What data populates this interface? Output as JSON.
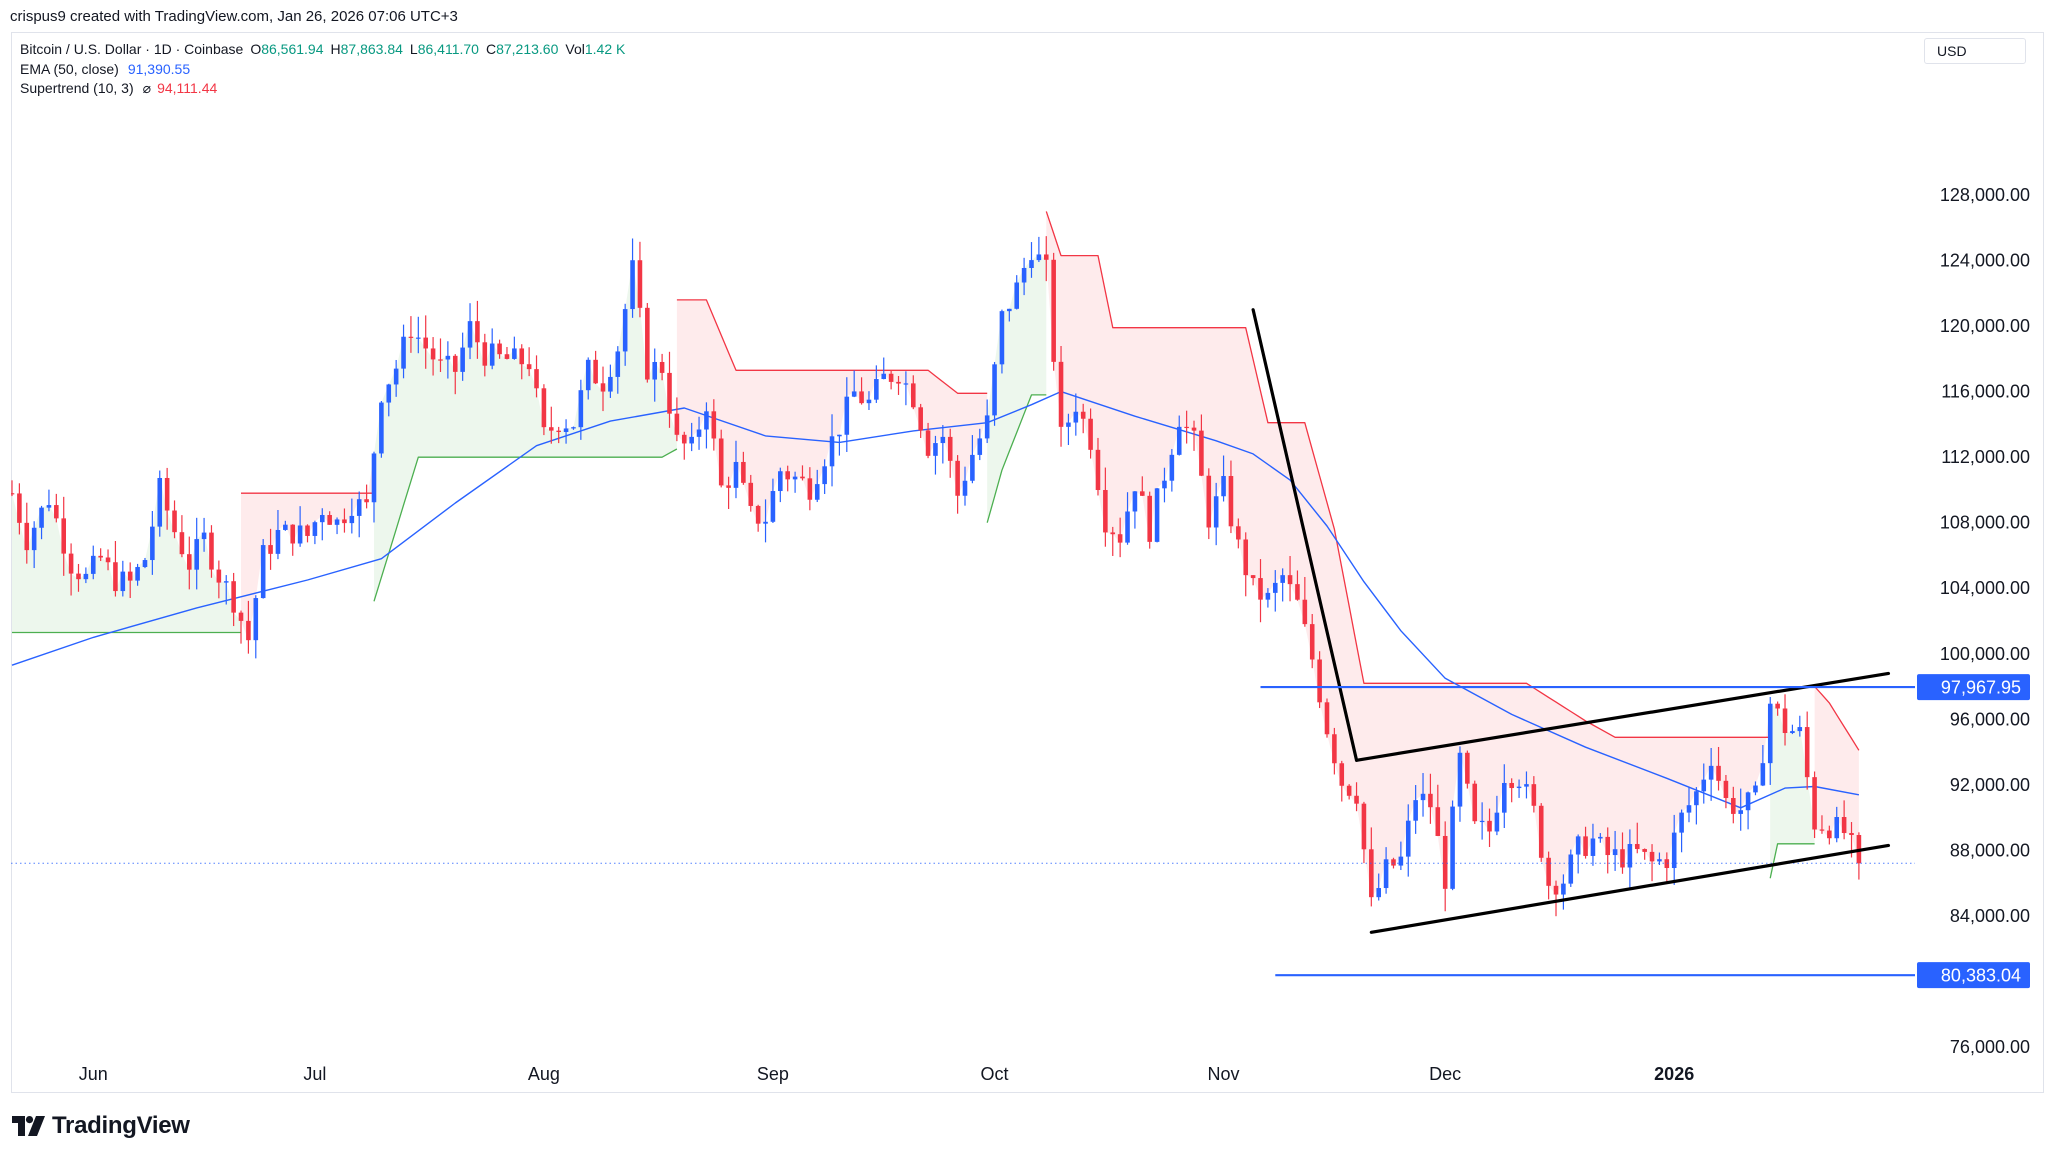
{
  "header": {
    "text": "crispus9 created with TradingView.com, Jan 26, 2026 07:06 UTC+3"
  },
  "legend": {
    "symbol": "Bitcoin / U.S. Dollar · 1D · Coinbase",
    "open_label": "O",
    "open": "86,561.94",
    "high_label": "H",
    "high": "87,863.84",
    "low_label": "L",
    "low": "86,411.70",
    "close_label": "C",
    "close": "87,213.60",
    "vol_label": "Vol",
    "vol": "1.42 K",
    "ema_label": "EMA (50, close)",
    "ema_value": "91,390.55",
    "supertrend_label": "Supertrend (10, 3)",
    "supertrend_symbol": "⌀",
    "supertrend_value": "94,111.44"
  },
  "currency": "USD",
  "brand": {
    "name": "TradingView"
  },
  "colors": {
    "up": "#2962ff",
    "down": "#f23645",
    "ema": "#2962ff",
    "supertrend_up": "#4caf50",
    "supertrend_down": "#f23645",
    "hline": "#2962ff"
  },
  "chart_data": {
    "type": "candlestick",
    "symbol": "Bitcoin / U.S. Dollar",
    "interval": "1D",
    "exchange": "Coinbase",
    "y_axis_ticks": [
      "128,000.00",
      "124,000.00",
      "120,000.00",
      "116,000.00",
      "112,000.00",
      "108,000.00",
      "104,000.00",
      "100,000.00",
      "96,000.00",
      "92,000.00",
      "88,000.00",
      "84,000.00",
      "76,000.00"
    ],
    "ylim": [
      76000,
      130000
    ],
    "x_axis_labels": [
      "Jun",
      "Jul",
      "Aug",
      "Sep",
      "Oct",
      "Nov",
      "Dec",
      "2026"
    ],
    "price_labels": [
      {
        "value": 97967.95,
        "text": "97,967.95"
      },
      {
        "value": 80383.04,
        "text": "80,383.04"
      }
    ],
    "last_price": 87213.6,
    "annotations": [
      {
        "type": "trendline",
        "from": [
          "2025-11-05",
          121000
        ],
        "to": [
          "2025-11-19",
          93500
        ]
      },
      {
        "type": "trendline",
        "from": [
          "2025-11-19",
          93500
        ],
        "to": [
          "2026-01-30",
          98800
        ]
      },
      {
        "type": "trendline",
        "from": [
          "2025-11-21",
          83000
        ],
        "to": [
          "2026-01-30",
          88300
        ]
      },
      {
        "type": "hline",
        "value": 97967.95,
        "from": "2025-11-06"
      },
      {
        "type": "hline",
        "value": 80383.04,
        "from": "2025-11-08"
      }
    ],
    "series": [
      {
        "name": "Price",
        "close_path": [
          [
            "2025-05-21",
            109800
          ],
          [
            "2025-05-23",
            107000
          ],
          [
            "2025-05-26",
            109500
          ],
          [
            "2025-05-29",
            105500
          ],
          [
            "2025-05-31",
            104600
          ],
          [
            "2025-06-02",
            105800
          ],
          [
            "2025-06-04",
            104500
          ],
          [
            "2025-06-06",
            104300
          ],
          [
            "2025-06-08",
            105800
          ],
          [
            "2025-06-10",
            110000
          ],
          [
            "2025-06-12",
            107500
          ],
          [
            "2025-06-14",
            105500
          ],
          [
            "2025-06-16",
            107000
          ],
          [
            "2025-06-18",
            104800
          ],
          [
            "2025-06-20",
            103300
          ],
          [
            "2025-06-22",
            100900
          ],
          [
            "2025-06-24",
            106000
          ],
          [
            "2025-06-26",
            107300
          ],
          [
            "2025-06-28",
            107400
          ],
          [
            "2025-06-30",
            107200
          ],
          [
            "2025-07-02",
            108900
          ],
          [
            "2025-07-04",
            108000
          ],
          [
            "2025-07-06",
            109200
          ],
          [
            "2025-07-08",
            108900
          ],
          [
            "2025-07-10",
            116000
          ],
          [
            "2025-07-12",
            117500
          ],
          [
            "2025-07-14",
            119900
          ],
          [
            "2025-07-16",
            118700
          ],
          [
            "2025-07-18",
            117500
          ],
          [
            "2025-07-20",
            117300
          ],
          [
            "2025-07-22",
            119900
          ],
          [
            "2025-07-24",
            118300
          ],
          [
            "2025-07-26",
            118000
          ],
          [
            "2025-07-28",
            117900
          ],
          [
            "2025-07-30",
            117800
          ],
          [
            "2025-08-01",
            113300
          ],
          [
            "2025-08-03",
            114200
          ],
          [
            "2025-08-05",
            114100
          ],
          [
            "2025-08-07",
            117300
          ],
          [
            "2025-08-09",
            116600
          ],
          [
            "2025-08-11",
            118700
          ],
          [
            "2025-08-13",
            123400
          ],
          [
            "2025-08-15",
            117400
          ],
          [
            "2025-08-17",
            117500
          ],
          [
            "2025-08-19",
            112900
          ],
          [
            "2025-08-21",
            112500
          ],
          [
            "2025-08-23",
            115400
          ],
          [
            "2025-08-25",
            110100
          ],
          [
            "2025-08-27",
            111300
          ],
          [
            "2025-08-29",
            108400
          ],
          [
            "2025-08-31",
            108300
          ],
          [
            "2025-09-02",
            111200
          ],
          [
            "2025-09-04",
            110700
          ],
          [
            "2025-09-06",
            110200
          ],
          [
            "2025-09-08",
            112100
          ],
          [
            "2025-09-10",
            113900
          ],
          [
            "2025-09-12",
            115900
          ],
          [
            "2025-09-14",
            115300
          ],
          [
            "2025-09-16",
            116800
          ],
          [
            "2025-09-18",
            117200
          ],
          [
            "2025-09-20",
            115700
          ],
          [
            "2025-09-22",
            112700
          ],
          [
            "2025-09-24",
            113300
          ],
          [
            "2025-09-26",
            109700
          ],
          [
            "2025-09-28",
            112200
          ],
          [
            "2025-09-30",
            114100
          ],
          [
            "2025-10-02",
            120500
          ],
          [
            "2025-10-04",
            122300
          ],
          [
            "2025-10-06",
            124800
          ],
          [
            "2025-10-08",
            123300
          ],
          [
            "2025-10-10",
            113200
          ],
          [
            "2025-10-12",
            115300
          ],
          [
            "2025-10-14",
            113100
          ],
          [
            "2025-10-16",
            108200
          ],
          [
            "2025-10-18",
            107200
          ],
          [
            "2025-10-20",
            110500
          ],
          [
            "2025-10-22",
            107600
          ],
          [
            "2025-10-24",
            111000
          ],
          [
            "2025-10-26",
            114500
          ],
          [
            "2025-10-28",
            112900
          ],
          [
            "2025-10-30",
            108300
          ],
          [
            "2025-11-01",
            110100
          ],
          [
            "2025-11-03",
            106500
          ],
          [
            "2025-11-05",
            103900
          ],
          [
            "2025-11-07",
            103300
          ],
          [
            "2025-11-09",
            104700
          ],
          [
            "2025-11-11",
            103000
          ],
          [
            "2025-11-13",
            99700
          ],
          [
            "2025-11-15",
            95500
          ],
          [
            "2025-11-17",
            92200
          ],
          [
            "2025-11-19",
            91500
          ],
          [
            "2025-11-21",
            84600
          ],
          [
            "2025-11-23",
            86800
          ],
          [
            "2025-11-25",
            87400
          ],
          [
            "2025-11-27",
            91300
          ],
          [
            "2025-11-29",
            90800
          ],
          [
            "2025-12-01",
            86300
          ],
          [
            "2025-12-03",
            93500
          ],
          [
            "2025-12-05",
            89300
          ],
          [
            "2025-12-07",
            89200
          ],
          [
            "2025-12-09",
            92700
          ],
          [
            "2025-12-11",
            92500
          ],
          [
            "2025-12-13",
            90300
          ],
          [
            "2025-12-15",
            86000
          ],
          [
            "2025-12-17",
            86200
          ],
          [
            "2025-12-19",
            88100
          ],
          [
            "2025-12-21",
            88600
          ],
          [
            "2025-12-23",
            87700
          ],
          [
            "2025-12-25",
            87600
          ],
          [
            "2025-12-27",
            87800
          ],
          [
            "2025-12-29",
            87200
          ],
          [
            "2025-12-31",
            87500
          ],
          [
            "2026-01-02",
            90000
          ],
          [
            "2026-01-04",
            91500
          ],
          [
            "2026-01-06",
            93800
          ],
          [
            "2026-01-08",
            91000
          ],
          [
            "2026-01-10",
            90500
          ],
          [
            "2026-01-12",
            91200
          ],
          [
            "2026-01-14",
            97000
          ],
          [
            "2026-01-16",
            95500
          ],
          [
            "2026-01-18",
            95100
          ],
          [
            "2026-01-20",
            89700
          ],
          [
            "2026-01-22",
            89500
          ],
          [
            "2026-01-24",
            89100
          ],
          [
            "2026-01-26",
            87213.6
          ]
        ]
      },
      {
        "name": "EMA (50, close)",
        "points": [
          [
            "2025-05-21",
            99300
          ],
          [
            "2025-06-01",
            101000
          ],
          [
            "2025-06-15",
            102800
          ],
          [
            "2025-06-30",
            104500
          ],
          [
            "2025-07-10",
            105800
          ],
          [
            "2025-07-20",
            109200
          ],
          [
            "2025-07-31",
            112700
          ],
          [
            "2025-08-10",
            114200
          ],
          [
            "2025-08-20",
            115000
          ],
          [
            "2025-08-31",
            113300
          ],
          [
            "2025-09-10",
            112900
          ],
          [
            "2025-09-20",
            113600
          ],
          [
            "2025-09-30",
            114100
          ],
          [
            "2025-10-06",
            115200
          ],
          [
            "2025-10-10",
            116000
          ],
          [
            "2025-10-20",
            114500
          ],
          [
            "2025-10-31",
            113000
          ],
          [
            "2025-11-05",
            112200
          ],
          [
            "2025-11-10",
            110600
          ],
          [
            "2025-11-15",
            107800
          ],
          [
            "2025-11-20",
            104400
          ],
          [
            "2025-11-25",
            101400
          ],
          [
            "2025-12-01",
            98500
          ],
          [
            "2025-12-10",
            96300
          ],
          [
            "2025-12-20",
            94300
          ],
          [
            "2025-12-31",
            92400
          ],
          [
            "2026-01-10",
            90600
          ],
          [
            "2026-01-16",
            91800
          ],
          [
            "2026-01-20",
            91900
          ],
          [
            "2026-01-26",
            91390.55
          ]
        ]
      },
      {
        "name": "Supertrend (10, 3)",
        "segments": [
          {
            "trend": "up",
            "points": [
              [
                "2025-05-21",
                101300
              ],
              [
                "2025-06-21",
                101300
              ]
            ]
          },
          {
            "trend": "down",
            "points": [
              [
                "2025-06-21",
                109800
              ],
              [
                "2025-07-09",
                109800
              ]
            ]
          },
          {
            "trend": "up",
            "points": [
              [
                "2025-07-09",
                103200
              ],
              [
                "2025-07-15",
                112000
              ],
              [
                "2025-08-17",
                112000
              ],
              [
                "2025-08-19",
                112500
              ]
            ]
          },
          {
            "trend": "down",
            "points": [
              [
                "2025-08-19",
                121600
              ],
              [
                "2025-08-23",
                121600
              ],
              [
                "2025-08-27",
                117300
              ],
              [
                "2025-09-22",
                117300
              ],
              [
                "2025-09-26",
                115900
              ],
              [
                "2025-09-30",
                115900
              ]
            ]
          },
          {
            "trend": "up",
            "points": [
              [
                "2025-09-30",
                108000
              ],
              [
                "2025-10-02",
                111200
              ],
              [
                "2025-10-06",
                115800
              ],
              [
                "2025-10-08",
                115800
              ]
            ]
          },
          {
            "trend": "down",
            "points": [
              [
                "2025-10-08",
                127000
              ],
              [
                "2025-10-10",
                124300
              ],
              [
                "2025-10-15",
                124300
              ],
              [
                "2025-10-17",
                119900
              ],
              [
                "2025-11-04",
                119900
              ],
              [
                "2025-11-07",
                114100
              ],
              [
                "2025-11-12",
                114100
              ],
              [
                "2025-11-16",
                107600
              ],
              [
                "2025-11-20",
                98200
              ],
              [
                "2025-12-12",
                98200
              ],
              [
                "2025-12-20",
                95900
              ],
              [
                "2025-12-24",
                94900
              ],
              [
                "2026-01-14",
                94900
              ]
            ]
          },
          {
            "trend": "up",
            "points": [
              [
                "2026-01-14",
                86300
              ],
              [
                "2026-01-15",
                88400
              ],
              [
                "2026-01-20",
                88400
              ]
            ]
          },
          {
            "trend": "down",
            "points": [
              [
                "2026-01-20",
                98000
              ],
              [
                "2026-01-22",
                97000
              ],
              [
                "2026-01-26",
                94111.44
              ]
            ]
          }
        ]
      }
    ]
  }
}
